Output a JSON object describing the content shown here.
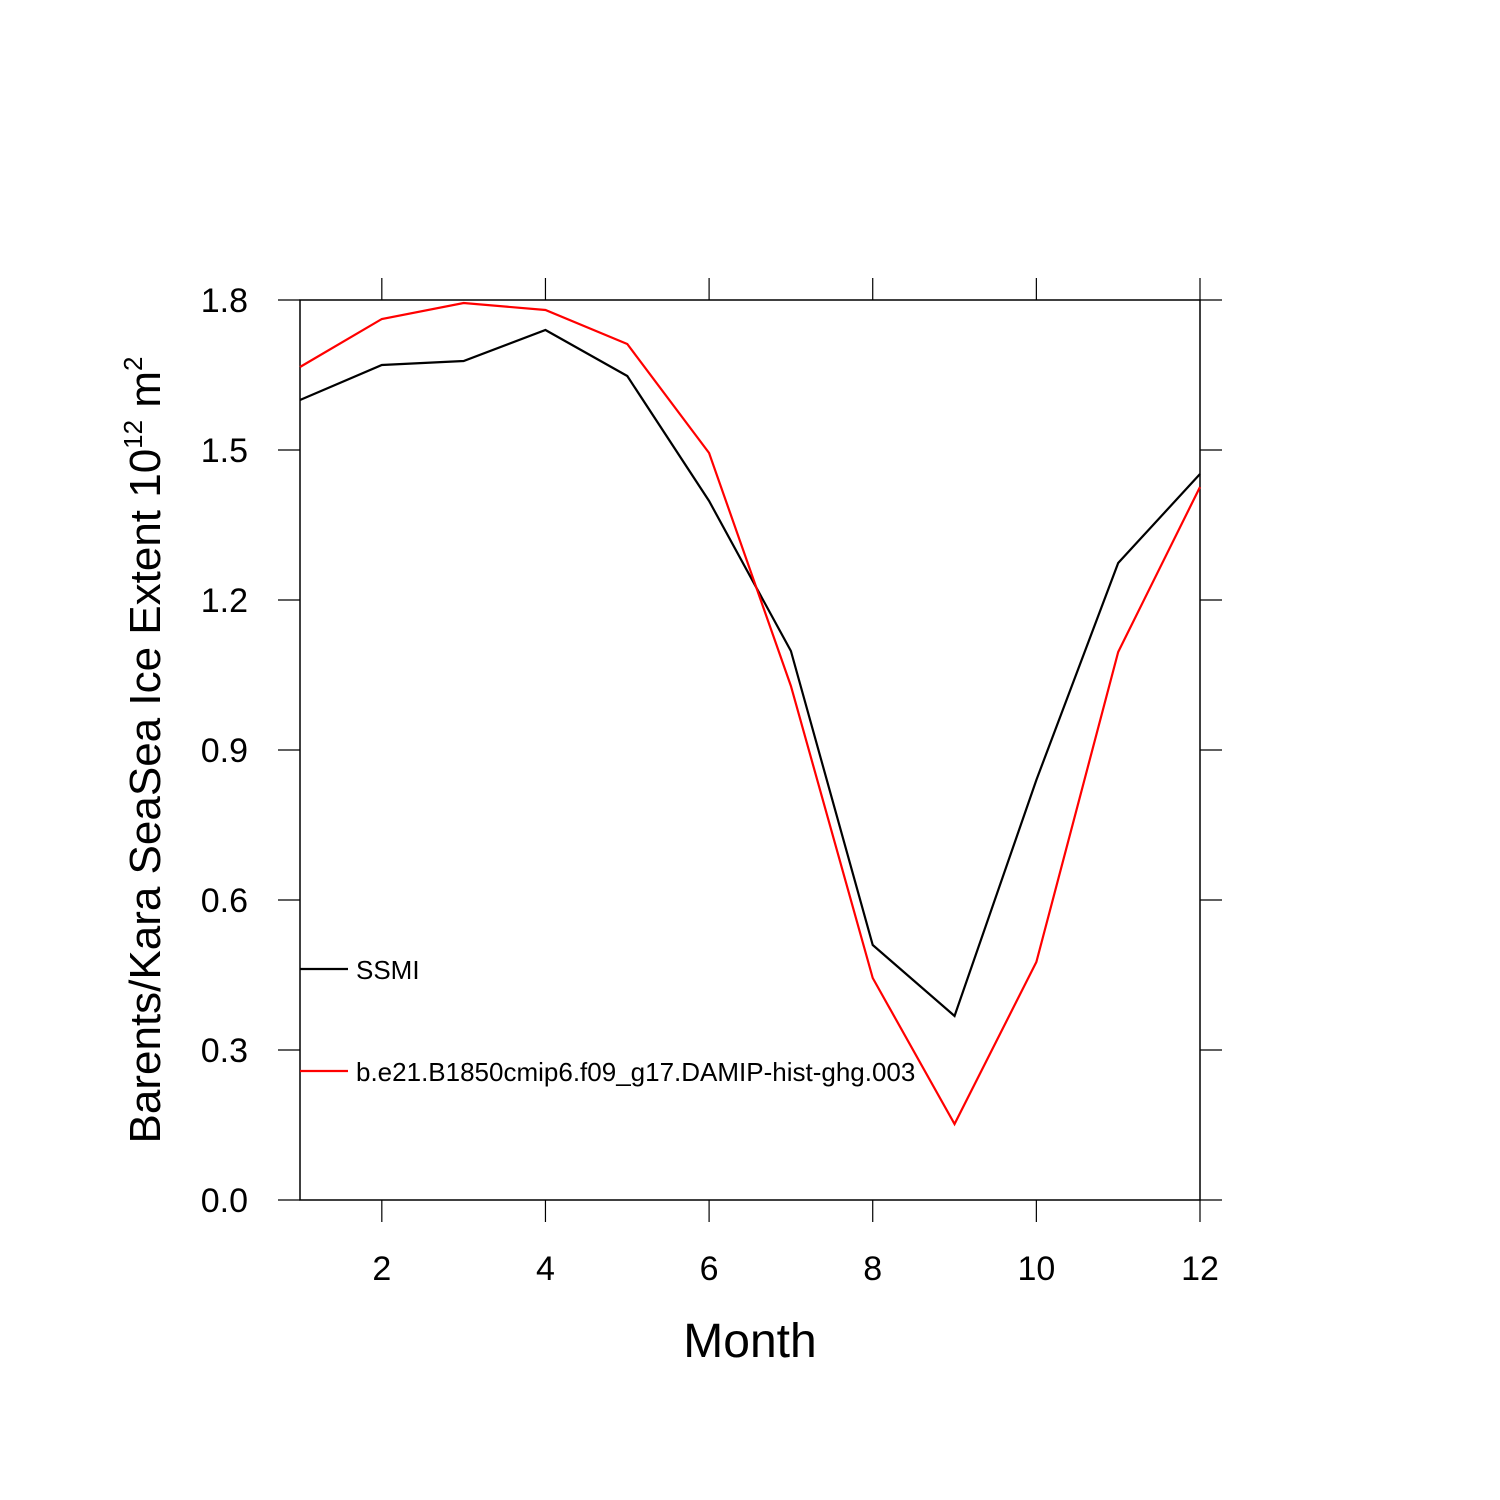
{
  "chart_data": {
    "type": "line",
    "xlabel": "Month",
    "ylabel": [
      "Barents/Kara SeaSea Ice Extent 10",
      "12",
      " m",
      "2"
    ],
    "x": [
      1,
      2,
      3,
      4,
      5,
      6,
      7,
      8,
      9,
      10,
      11,
      12
    ],
    "series": [
      {
        "name": "SSMI",
        "color": "#000000",
        "values": [
          1.6,
          1.67,
          1.678,
          1.74,
          1.648,
          1.398,
          1.098,
          0.51,
          0.368,
          0.84,
          1.274,
          1.452
        ]
      },
      {
        "name": "b.e21.B1850cmip6.f09_g17.DAMIP-hist-ghg.003",
        "color": "#ff0000",
        "values": [
          1.666,
          1.762,
          1.794,
          1.78,
          1.712,
          1.494,
          1.028,
          0.444,
          0.152,
          0.476,
          1.096,
          1.426
        ]
      }
    ],
    "xlim": [
      1,
      12
    ],
    "xticks": [
      2,
      4,
      6,
      8,
      10,
      12
    ],
    "ylim": [
      0,
      1.8
    ],
    "yticks": [
      {
        "value": 0,
        "label": "0.0"
      },
      0.3,
      0.6,
      0.9,
      1.2,
      1.5,
      1.8
    ]
  }
}
